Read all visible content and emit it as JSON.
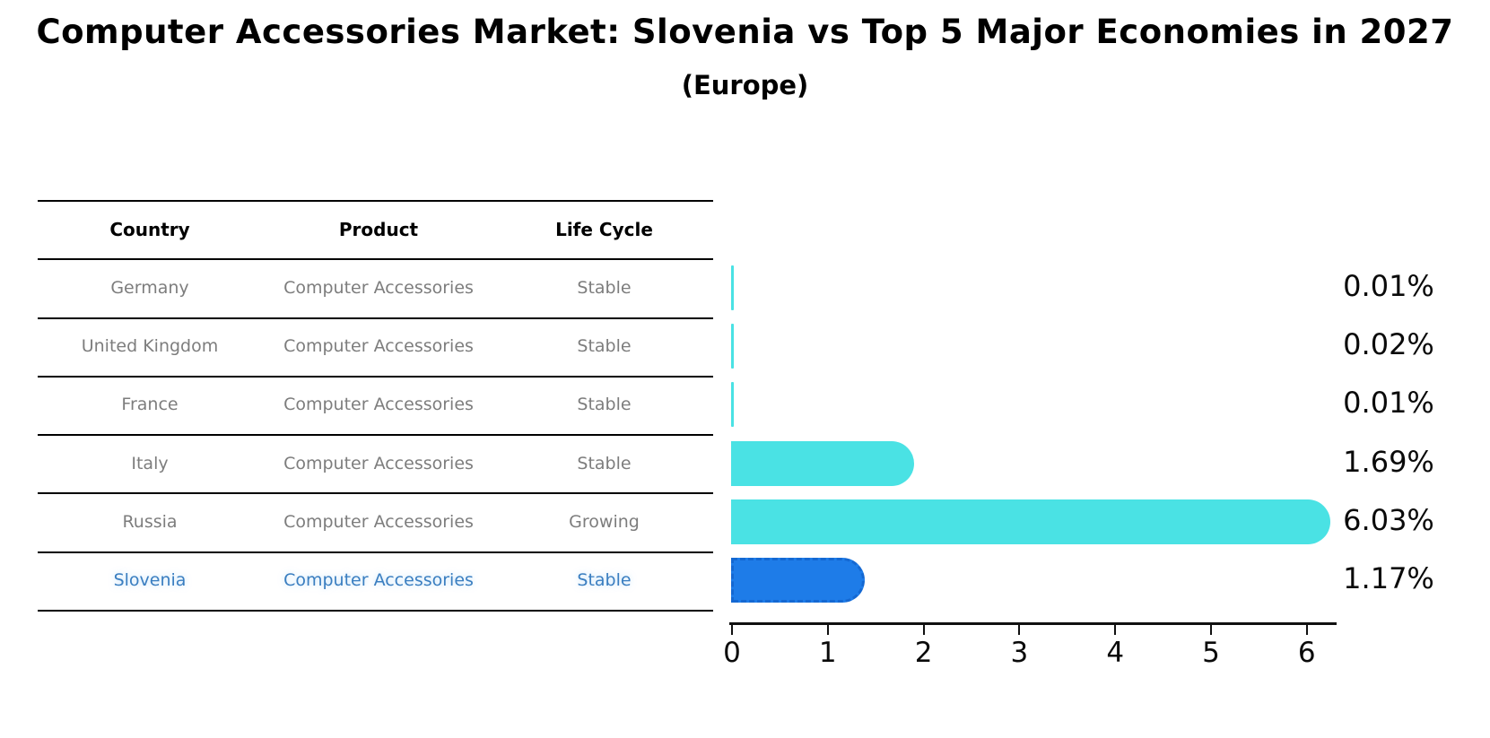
{
  "title": "Computer Accessories Market: Slovenia vs Top 5 Major Economies in 2027",
  "subtitle": "(Europe)",
  "table": {
    "headers": [
      "Country",
      "Product",
      "Life Cycle"
    ],
    "rows": [
      {
        "country": "Germany",
        "product": "Computer Accessories",
        "life_cycle": "Stable",
        "highlight": false
      },
      {
        "country": "United Kingdom",
        "product": "Computer Accessories",
        "life_cycle": "Stable",
        "highlight": false
      },
      {
        "country": "France",
        "product": "Computer Accessories",
        "life_cycle": "Stable",
        "highlight": false
      },
      {
        "country": "Italy",
        "product": "Computer Accessories",
        "life_cycle": "Stable",
        "highlight": false
      },
      {
        "country": "Russia",
        "product": "Computer Accessories",
        "life_cycle": "Growing",
        "highlight": false
      },
      {
        "country": "Slovenia",
        "product": "Computer Accessories",
        "life_cycle": "Stable",
        "highlight": true
      }
    ]
  },
  "chart_data": {
    "type": "bar",
    "orientation": "horizontal",
    "title": "Computer Accessories Market: Slovenia vs Top 5 Major Economies in 2027 (Europe)",
    "categories": [
      "Germany",
      "United Kingdom",
      "France",
      "Italy",
      "Russia",
      "Slovenia"
    ],
    "values": [
      0.01,
      0.02,
      0.01,
      1.69,
      6.03,
      1.17
    ],
    "value_labels": [
      "0.01%",
      "0.02%",
      "0.01%",
      "1.69%",
      "6.03%",
      "1.17%"
    ],
    "xticks": [
      0,
      1,
      2,
      3,
      4,
      5,
      6
    ],
    "xlim": [
      0,
      6.4
    ],
    "grid": false,
    "legend": false,
    "highlight_index": 5,
    "colors": {
      "bar": "#4ae2e4",
      "highlight_bar": "#1e7ce8",
      "highlight_border": "#1468d2",
      "highlight_text": "#3a7ec0",
      "table_text": "#7d7d7d",
      "axis": "#111111"
    }
  }
}
